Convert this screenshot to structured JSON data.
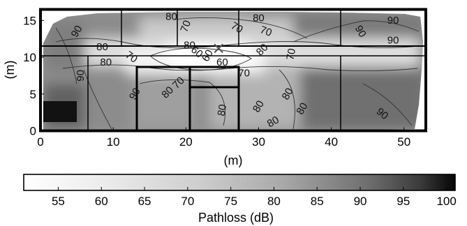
{
  "chart_data": {
    "type": "heatmap",
    "title": "",
    "xlabel": "(m)",
    "ylabel": "(m)",
    "xlim": [
      0,
      53
    ],
    "ylim": [
      0,
      16.5
    ],
    "x_ticks": [
      "0",
      "10",
      "20",
      "30",
      "40",
      "50"
    ],
    "x_tick_values": [
      0,
      10,
      20,
      30,
      40,
      50
    ],
    "y_ticks": [
      "0",
      "5",
      "10",
      "15"
    ],
    "y_tick_values": [
      0,
      5,
      10,
      15
    ],
    "grid": false,
    "marker": {
      "symbol": "x",
      "x": 24.5,
      "y": 11.2
    },
    "contour_labels": [
      {
        "text": "80",
        "x": 18,
        "y": 15.5,
        "angle": 0
      },
      {
        "text": "80",
        "x": 30,
        "y": 15.3,
        "angle": 0
      },
      {
        "text": "70",
        "x": 20,
        "y": 14.2,
        "angle": -70
      },
      {
        "text": "70",
        "x": 27,
        "y": 14.0,
        "angle": 30
      },
      {
        "text": "70",
        "x": 31,
        "y": 13.5,
        "angle": 20
      },
      {
        "text": "90",
        "x": 5,
        "y": 13.5,
        "angle": -60
      },
      {
        "text": "90",
        "x": 44,
        "y": 13.5,
        "angle": 60
      },
      {
        "text": "90",
        "x": 48.5,
        "y": 15.0,
        "angle": 0
      },
      {
        "text": "90",
        "x": 48.5,
        "y": 12.3,
        "angle": 0
      },
      {
        "text": "80",
        "x": 8.5,
        "y": 11.4,
        "angle": 0
      },
      {
        "text": "80",
        "x": 9.0,
        "y": 9.3,
        "angle": 0
      },
      {
        "text": "70",
        "x": 12.5,
        "y": 10.0,
        "angle": 35
      },
      {
        "text": "80",
        "x": 20.5,
        "y": 11.6,
        "angle": 0
      },
      {
        "text": "80",
        "x": 30.5,
        "y": 11.0,
        "angle": -45
      },
      {
        "text": "60",
        "x": 21.5,
        "y": 10.7,
        "angle": 40
      },
      {
        "text": "60",
        "x": 23.0,
        "y": 10.2,
        "angle": -60
      },
      {
        "text": "60",
        "x": 25.0,
        "y": 9.3,
        "angle": 0
      },
      {
        "text": "70",
        "x": 28.0,
        "y": 7.8,
        "angle": 0
      },
      {
        "text": "70",
        "x": 34.5,
        "y": 10.4,
        "angle": -80
      },
      {
        "text": "90",
        "x": 5.5,
        "y": 7.5,
        "angle": -90
      },
      {
        "text": "90",
        "x": 13.0,
        "y": 5.0,
        "angle": -60
      },
      {
        "text": "80",
        "x": 17.5,
        "y": 5.2,
        "angle": -45
      },
      {
        "text": "70",
        "x": 19.0,
        "y": 6.5,
        "angle": -45
      },
      {
        "text": "80",
        "x": 25.0,
        "y": 2.8,
        "angle": -80
      },
      {
        "text": "80",
        "x": 30.0,
        "y": 3.3,
        "angle": -60
      },
      {
        "text": "80",
        "x": 34.0,
        "y": 5.0,
        "angle": -60
      },
      {
        "text": "80",
        "x": 36.0,
        "y": 3.0,
        "angle": -60
      },
      {
        "text": "80",
        "x": 32.0,
        "y": 1.2,
        "angle": -30
      },
      {
        "text": "90",
        "x": 47.0,
        "y": 2.3,
        "angle": 40
      }
    ],
    "colorbar": {
      "label": "Pathloss (dB)",
      "min": 51,
      "max": 101,
      "colormap": "gray (white = low, black = high)",
      "ticks": [
        "55",
        "60",
        "65",
        "70",
        "75",
        "80",
        "85",
        "90",
        "95",
        "100"
      ],
      "tick_values": [
        55,
        60,
        65,
        70,
        75,
        80,
        85,
        90,
        95,
        100
      ]
    }
  }
}
